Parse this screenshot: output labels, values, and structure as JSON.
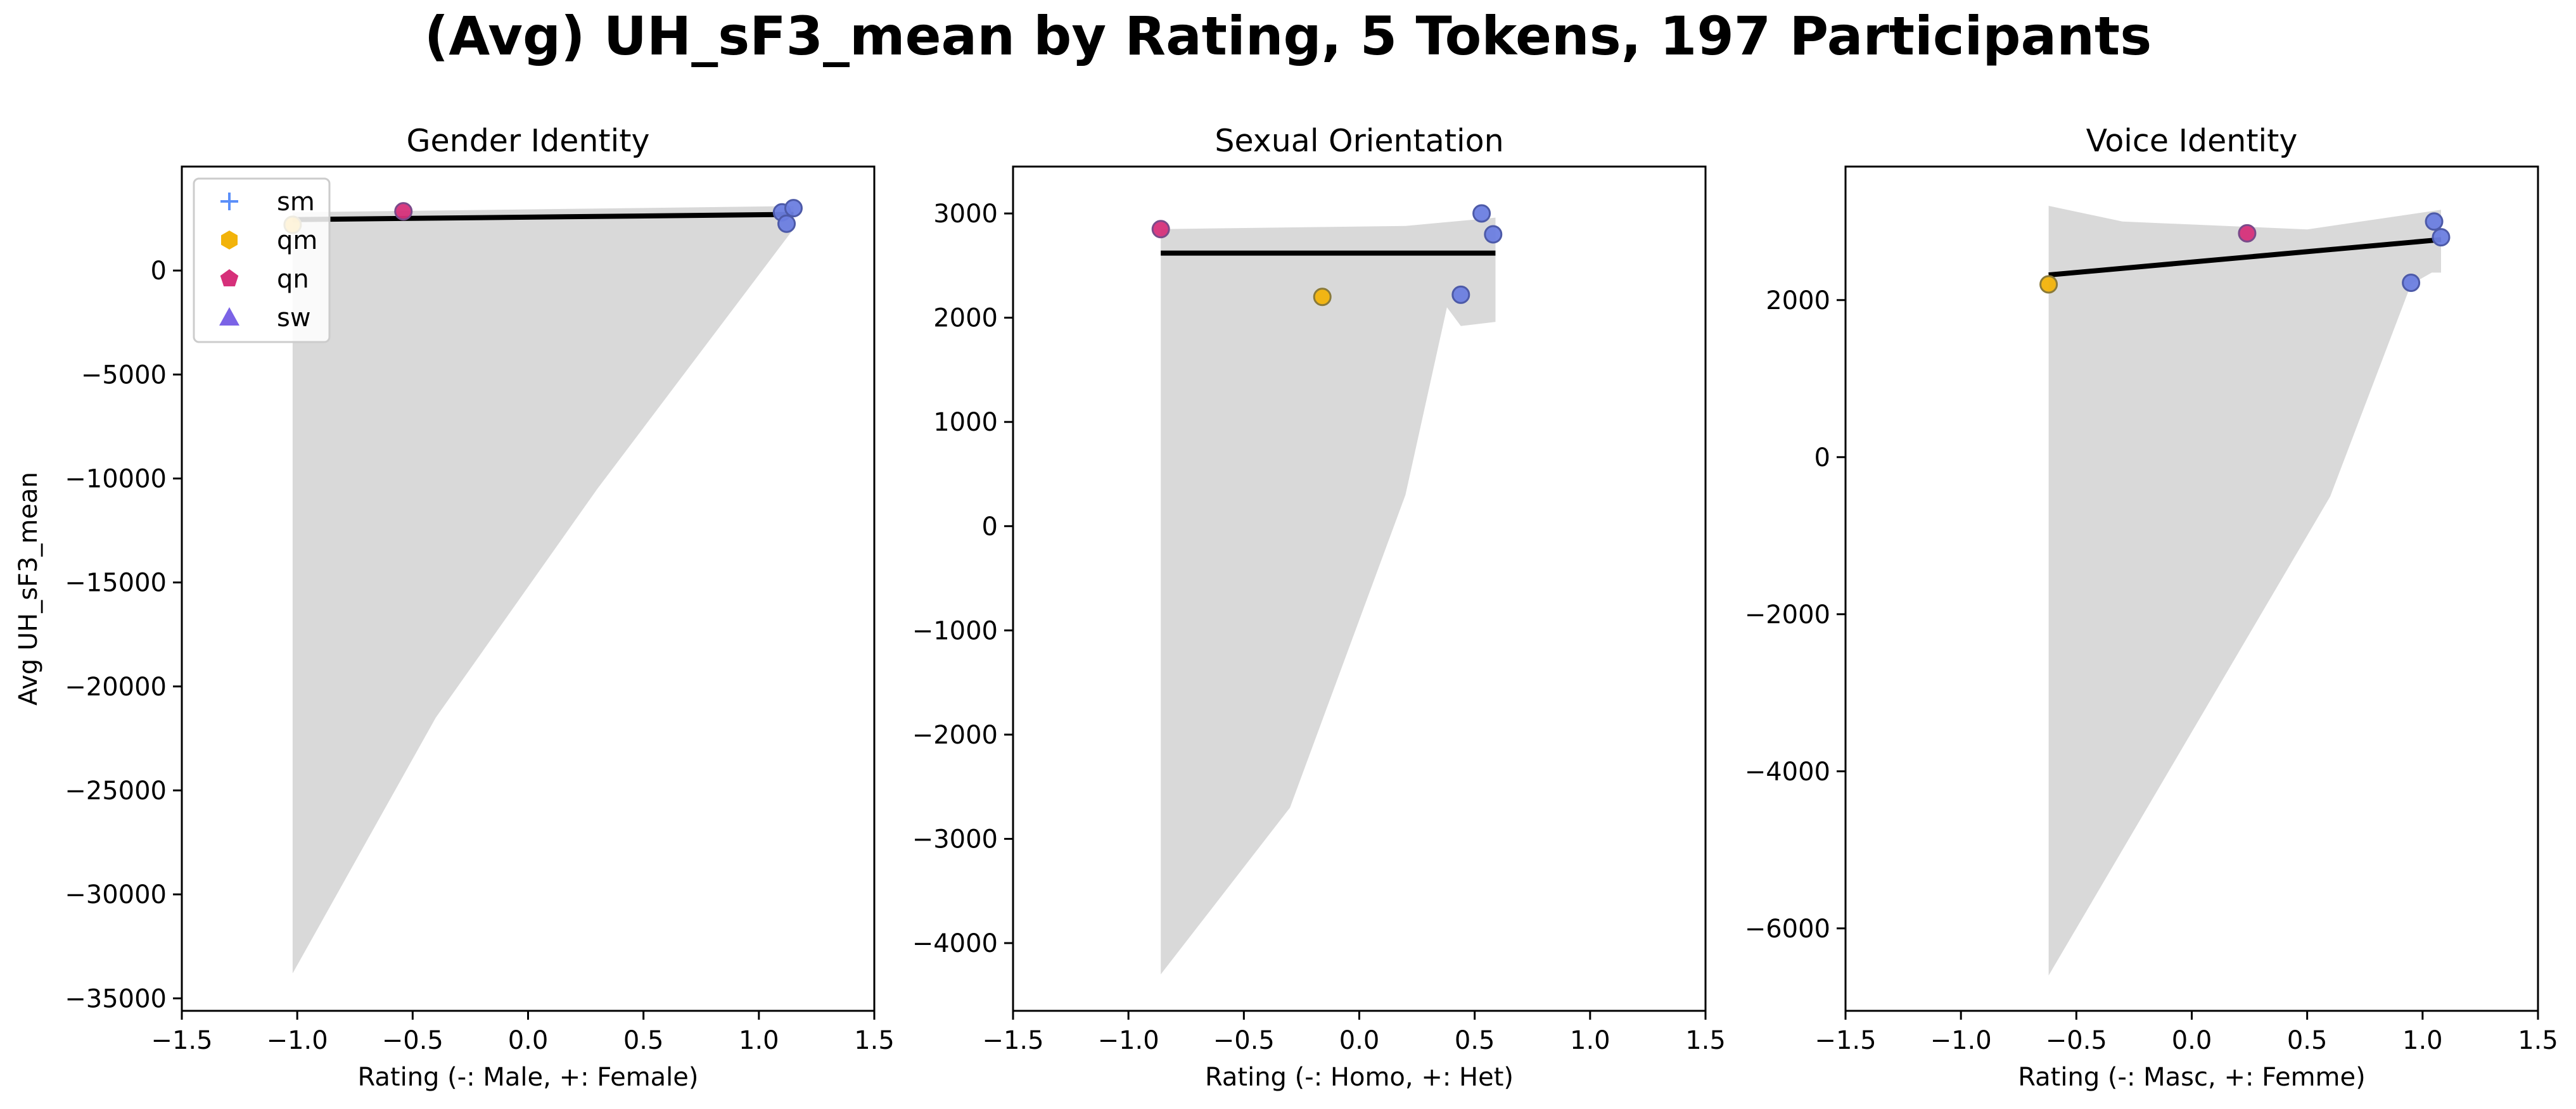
{
  "title": "(Avg) UH_sF3_mean by Rating, 5 Tokens, 197 Participants",
  "colors": {
    "sm": "#5b8ff9",
    "qm": "#f2b30a",
    "qn": "#d6307a",
    "sw": "#7b63e6",
    "point_fill": "#6c7ee0",
    "point_edge": "#4d5aa8",
    "band": "#d9d9d9",
    "regression_line": "#000000"
  },
  "legend": {
    "location": "upper-left",
    "items": [
      {
        "label": "sm",
        "marker": "plus",
        "color": "#5b8ff9"
      },
      {
        "label": "qm",
        "marker": "hexagon",
        "color": "#f2b30a"
      },
      {
        "label": "qn",
        "marker": "pentagon",
        "color": "#d6307a"
      },
      {
        "label": "sw",
        "marker": "triangle",
        "color": "#7b63e6"
      }
    ]
  },
  "chart_data": [
    {
      "type": "scatter",
      "title": "Gender Identity",
      "xlabel": "Rating (-: Male, +: Female)",
      "ylabel": "Avg UH_sF3_mean",
      "xlim": [
        -1.5,
        1.5
      ],
      "ylim": [
        -35600,
        5000
      ],
      "xticks": [
        -1.5,
        -1.0,
        -0.5,
        0.0,
        0.5,
        1.0,
        1.5
      ],
      "yticks": [
        -35000,
        -30000,
        -25000,
        -20000,
        -15000,
        -10000,
        -5000,
        0
      ],
      "xtick_labels": [
        "−1.5",
        "−1.0",
        "−0.5",
        "0.0",
        "0.5",
        "1.0",
        "1.5"
      ],
      "ytick_labels": [
        "−35000",
        "−30000",
        "−25000",
        "−20000",
        "−15000",
        "−10000",
        "−5000",
        "0"
      ],
      "points": [
        {
          "x": -1.02,
          "y": 2200,
          "token": "qm"
        },
        {
          "x": -0.54,
          "y": 2850,
          "token": "qn"
        },
        {
          "x": 1.1,
          "y": 2800,
          "token": "sm"
        },
        {
          "x": 1.15,
          "y": 3000,
          "token": "sm"
        },
        {
          "x": 1.12,
          "y": 2250,
          "token": "sw"
        }
      ],
      "regression": {
        "x": [
          -1.02,
          1.15
        ],
        "y": [
          2450,
          2700
        ]
      },
      "ci_band": {
        "upper": [
          [
            -1.02,
            2800
          ],
          [
            1.15,
            3100
          ]
        ],
        "lower": [
          [
            -1.02,
            -33800
          ],
          [
            -0.4,
            -21500
          ],
          [
            0.3,
            -10500
          ],
          [
            1.15,
            2000
          ]
        ]
      }
    },
    {
      "type": "scatter",
      "title": "Sexual Orientation",
      "xlabel": "Rating (-: Homo, +: Het)",
      "ylabel": "",
      "xlim": [
        -1.5,
        1.5
      ],
      "ylim": [
        -4650,
        3450
      ],
      "xticks": [
        -1.5,
        -1.0,
        -0.5,
        0.0,
        0.5,
        1.0,
        1.5
      ],
      "yticks": [
        -4000,
        -3000,
        -2000,
        -1000,
        0,
        1000,
        2000,
        3000
      ],
      "xtick_labels": [
        "−1.5",
        "−1.0",
        "−0.5",
        "0.0",
        "0.5",
        "1.0",
        "1.5"
      ],
      "ytick_labels": [
        "−4000",
        "−3000",
        "−2000",
        "−1000",
        "0",
        "1000",
        "2000",
        "3000"
      ],
      "points": [
        {
          "x": -0.86,
          "y": 2850,
          "token": "qn"
        },
        {
          "x": -0.16,
          "y": 2200,
          "token": "qm"
        },
        {
          "x": 0.44,
          "y": 2220,
          "token": "sw"
        },
        {
          "x": 0.53,
          "y": 3000,
          "token": "sm"
        },
        {
          "x": 0.58,
          "y": 2800,
          "token": "sm"
        }
      ],
      "regression": {
        "x": [
          -0.86,
          0.59
        ],
        "y": [
          2620,
          2620
        ]
      },
      "ci_band": {
        "upper": [
          [
            -0.86,
            2850
          ],
          [
            0.2,
            2880
          ],
          [
            0.59,
            2960
          ]
        ],
        "lower": [
          [
            -0.86,
            -4300
          ],
          [
            -0.3,
            -2700
          ],
          [
            0.2,
            300
          ],
          [
            0.38,
            2100
          ],
          [
            0.44,
            1920
          ],
          [
            0.59,
            1960
          ]
        ]
      }
    },
    {
      "type": "scatter",
      "title": "Voice Identity",
      "xlabel": "Rating (-: Masc, +: Femme)",
      "ylabel": "",
      "xlim": [
        -1.5,
        1.5
      ],
      "ylim": [
        -7050,
        3700
      ],
      "xticks": [
        -1.5,
        -1.0,
        -0.5,
        0.0,
        0.5,
        1.0,
        1.5
      ],
      "yticks": [
        -6000,
        -4000,
        -2000,
        0,
        2000
      ],
      "xtick_labels": [
        "−1.5",
        "−1.0",
        "−0.5",
        "0.0",
        "0.5",
        "1.0",
        "1.5"
      ],
      "ytick_labels": [
        "−6000",
        "−4000",
        "−2000",
        "0",
        "2000"
      ],
      "points": [
        {
          "x": -0.62,
          "y": 2200,
          "token": "qm"
        },
        {
          "x": 0.24,
          "y": 2850,
          "token": "qn"
        },
        {
          "x": 0.95,
          "y": 2220,
          "token": "sw"
        },
        {
          "x": 1.05,
          "y": 3000,
          "token": "sm"
        },
        {
          "x": 1.08,
          "y": 2800,
          "token": "sm"
        }
      ],
      "regression": {
        "x": [
          -0.62,
          1.08
        ],
        "y": [
          2320,
          2770
        ]
      },
      "ci_band": {
        "upper": [
          [
            -0.62,
            3200
          ],
          [
            -0.3,
            3000
          ],
          [
            0.5,
            2900
          ],
          [
            1.08,
            3150
          ]
        ],
        "lower": [
          [
            -0.62,
            -6600
          ],
          [
            0.0,
            -3500
          ],
          [
            0.6,
            -500
          ],
          [
            0.95,
            2200
          ],
          [
            1.04,
            2350
          ],
          [
            1.08,
            2350
          ]
        ]
      }
    }
  ]
}
